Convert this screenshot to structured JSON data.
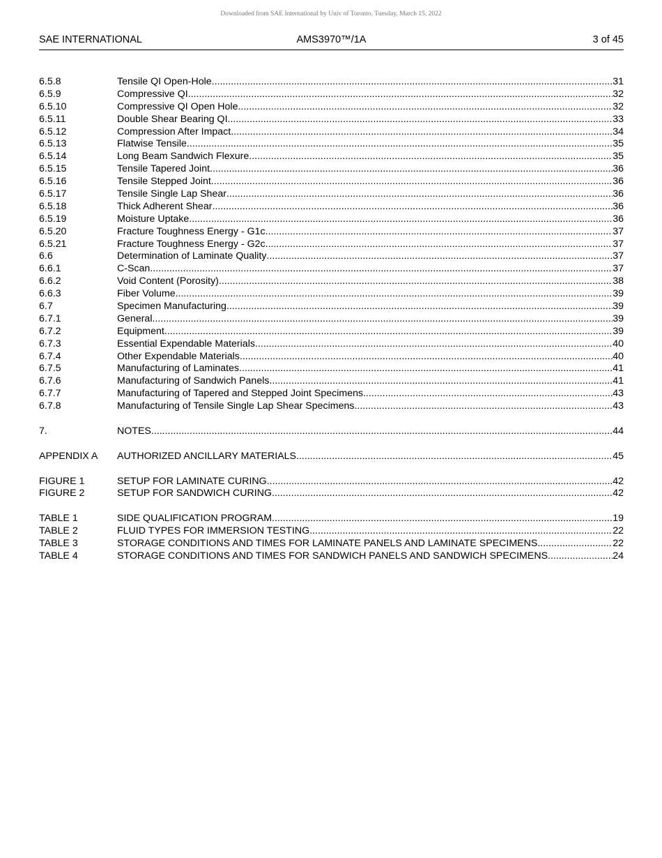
{
  "download_notice": "Downloaded from SAE International by Univ of Toronto, Tuesday, March 15, 2022",
  "header": {
    "left": "SAE INTERNATIONAL",
    "center": "AMS3970™/1A",
    "right": "3 of 45"
  },
  "toc_groups": [
    [
      {
        "num": "6.5.8",
        "title": "Tensile QI Open-Hole",
        "page": "31"
      },
      {
        "num": "6.5.9",
        "title": "Compressive QI",
        "page": "32"
      },
      {
        "num": "6.5.10",
        "title": "Compressive QI Open Hole",
        "page": "32"
      },
      {
        "num": "6.5.11",
        "title": "Double Shear Bearing QI",
        "page": "33"
      },
      {
        "num": "6.5.12",
        "title": "Compression After Impact",
        "page": "34"
      },
      {
        "num": "6.5.13",
        "title": "Flatwise Tensile",
        "page": "35"
      },
      {
        "num": "6.5.14",
        "title": "Long Beam Sandwich Flexure",
        "page": "35"
      },
      {
        "num": "6.5.15",
        "title": "Tensile Tapered Joint",
        "page": "36"
      },
      {
        "num": "6.5.16",
        "title": "Tensile Stepped Joint",
        "page": "36"
      },
      {
        "num": "6.5.17",
        "title": "Tensile Single Lap Shear",
        "page": "36"
      },
      {
        "num": "6.5.18",
        "title": "Thick Adherent Shear",
        "page": "36"
      },
      {
        "num": "6.5.19",
        "title": "Moisture Uptake",
        "page": "36"
      },
      {
        "num": "6.5.20",
        "title": "Fracture Toughness Energy - G1c",
        "page": "37"
      },
      {
        "num": "6.5.21",
        "title": "Fracture Toughness Energy - G2c",
        "page": "37"
      },
      {
        "num": "6.6",
        "title": "Determination of Laminate Quality",
        "page": "37"
      },
      {
        "num": "6.6.1",
        "title": "C-Scan",
        "page": "37"
      },
      {
        "num": "6.6.2",
        "title": "Void Content (Porosity)",
        "page": "38"
      },
      {
        "num": "6.6.3",
        "title": "Fiber Volume",
        "page": "39"
      },
      {
        "num": "6.7",
        "title": "Specimen Manufacturing",
        "page": "39"
      },
      {
        "num": "6.7.1",
        "title": "General",
        "page": "39"
      },
      {
        "num": "6.7.2",
        "title": "Equipment",
        "page": "39"
      },
      {
        "num": "6.7.3",
        "title": "Essential Expendable Materials",
        "page": "40"
      },
      {
        "num": "6.7.4",
        "title": "Other Expendable Materials",
        "page": "40"
      },
      {
        "num": "6.7.5",
        "title": "Manufacturing of Laminates",
        "page": "41"
      },
      {
        "num": "6.7.6",
        "title": "Manufacturing of Sandwich Panels",
        "page": "41"
      },
      {
        "num": "6.7.7",
        "title": "Manufacturing of Tapered and Stepped Joint Specimens",
        "page": "43"
      },
      {
        "num": "6.7.8",
        "title": "Manufacturing of Tensile Single Lap Shear Specimens",
        "page": "43"
      }
    ],
    [
      {
        "num": "7.",
        "title": "NOTES",
        "page": "44"
      }
    ],
    [
      {
        "num": "APPENDIX A",
        "title": "AUTHORIZED ANCILLARY MATERIALS",
        "page": "45"
      }
    ],
    [
      {
        "num": "FIGURE 1",
        "title": "SETUP FOR LAMINATE CURING",
        "page": "42"
      },
      {
        "num": "FIGURE 2",
        "title": "SETUP FOR SANDWICH CURING",
        "page": "42"
      }
    ],
    [
      {
        "num": "TABLE 1",
        "title": "SIDE QUALIFICATION PROGRAM",
        "page": "19"
      },
      {
        "num": "TABLE 2",
        "title": "FLUID TYPES FOR IMMERSION TESTING",
        "page": "22"
      },
      {
        "num": "TABLE 3",
        "title": "STORAGE CONDITIONS AND TIMES FOR LAMINATE PANELS AND LAMINATE SPECIMENS",
        "page": "22"
      },
      {
        "num": "TABLE 4",
        "title": "STORAGE CONDITIONS AND TIMES FOR SANDWICH PANELS AND SANDWICH SPECIMENS",
        "page": "24"
      }
    ]
  ]
}
